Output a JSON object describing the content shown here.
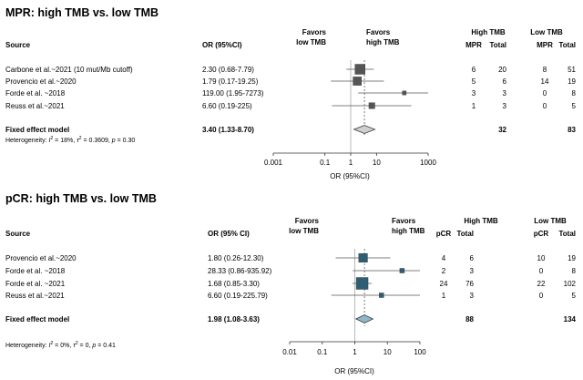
{
  "chart_data": [
    {
      "type": "forest",
      "title": "MPR: high TMB vs. low TMB",
      "headers": {
        "source": "Source",
        "or": "OR (95%CI)",
        "favors_left": [
          "Favors",
          "low TMB"
        ],
        "favors_right": [
          "Favors",
          "high TMB"
        ],
        "group_high": "High TMB",
        "group_low": "Low TMB",
        "event_label": "MPR",
        "total_label": "Total"
      },
      "x_scale": "log",
      "xlim": [
        0.001,
        1000
      ],
      "ticks": [
        {
          "value": 0.001,
          "label": "0.001"
        },
        {
          "value": 0.1,
          "label": "0.1"
        },
        {
          "value": 1,
          "label": "1"
        },
        {
          "value": 10,
          "label": "10"
        },
        {
          "value": 1000,
          "label": "1000"
        }
      ],
      "xlabel": "OR (95%CI)",
      "studies": [
        {
          "source": "Carbone et al.~2021 (10 mut/Mb cutoff)",
          "or_text": "2.30 (0.68-7.79)",
          "or": 2.3,
          "lo": 0.68,
          "hi": 7.79,
          "weight": 1.0,
          "high_events": "6",
          "high_total": "20",
          "low_events": "8",
          "low_total": "51"
        },
        {
          "source": "Provencio et al.~2020",
          "or_text": "1.79 (0.17-19.25)",
          "or": 1.79,
          "lo": 0.17,
          "hi": 19.25,
          "weight": 0.7,
          "high_events": "5",
          "high_total": "6",
          "low_events": "14",
          "low_total": "19"
        },
        {
          "source": "Forde et al. ~2018",
          "or_text": "119.00 (1.95-7273)",
          "or": 119.0,
          "lo": 1.95,
          "hi": 7273,
          "weight": 0.15,
          "high_events": "3",
          "high_total": "3",
          "low_events": "0",
          "low_total": "8"
        },
        {
          "source": "Reuss et al.~2021",
          "or_text": "6.60 (0.19-225)",
          "or": 6.6,
          "lo": 0.19,
          "hi": 225,
          "weight": 0.35,
          "high_events": "1",
          "high_total": "3",
          "low_events": "0",
          "low_total": "5"
        }
      ],
      "summary": {
        "label": "Fixed effect model",
        "or_text": "3.40 (1.33-8.70)",
        "or": 3.4,
        "lo": 1.33,
        "hi": 8.7,
        "high_total": "32",
        "low_total": "83"
      },
      "heterogeneity": {
        "prefix": "Heterogeneity: ",
        "i2": "I",
        "i2_val": " = 18%, ",
        "tau": "τ",
        "tau_val": " = 0.3609, ",
        "p": "p",
        "p_val": " = 0.30"
      },
      "box_color": "#555555",
      "diamond_color": "#cfcfcf"
    },
    {
      "type": "forest",
      "title": "pCR: high TMB vs. low TMB",
      "headers": {
        "source": "Source",
        "or": "OR (95% CI)",
        "favors_left": [
          "Favors",
          "low TMB"
        ],
        "favors_right": [
          "Favors",
          "high TMB"
        ],
        "group_high": "High TMB",
        "group_low": "Low TMB",
        "event_label": "pCR",
        "total_label": "Total"
      },
      "x_scale": "log",
      "xlim": [
        0.01,
        100
      ],
      "ticks": [
        {
          "value": 0.01,
          "label": "0.01"
        },
        {
          "value": 0.1,
          "label": "0.1"
        },
        {
          "value": 1,
          "label": "1"
        },
        {
          "value": 10,
          "label": "10"
        },
        {
          "value": 100,
          "label": "100"
        }
      ],
      "xlabel": "OR (95%CI)",
      "studies": [
        {
          "source": "Provencio et al.~2020",
          "or_text": "1.80 (0.26-12.30)",
          "or": 1.8,
          "lo": 0.26,
          "hi": 12.3,
          "weight": 0.55,
          "high_events": "4",
          "high_total": "6",
          "low_events": "10",
          "low_total": "19"
        },
        {
          "source": "Forde et al. ~2018",
          "or_text": "28.33 (0.86-935.92)",
          "or": 28.33,
          "lo": 0.86,
          "hi": 935.92,
          "weight": 0.15,
          "high_events": "2",
          "high_total": "3",
          "low_events": "0",
          "low_total": "8"
        },
        {
          "source": "Forde et al. ~2021",
          "or_text": "1.68 (0.85-3.30)",
          "or": 1.68,
          "lo": 0.85,
          "hi": 3.3,
          "weight": 1.0,
          "high_events": "24",
          "high_total": "76",
          "low_events": "22",
          "low_total": "102"
        },
        {
          "source": "Reuss et al.~2021",
          "or_text": "6.60 (0.19-225.79)",
          "or": 6.6,
          "lo": 0.19,
          "hi": 225.79,
          "weight": 0.15,
          "high_events": "1",
          "high_total": "3",
          "low_events": "0",
          "low_total": "5"
        }
      ],
      "summary": {
        "label": "Fixed effect model",
        "or_text": "1.98 (1.08-3.63)",
        "or": 1.98,
        "lo": 1.08,
        "hi": 3.63,
        "high_total": "88",
        "low_total": "134"
      },
      "heterogeneity": {
        "prefix": "Heterogeneity: ",
        "i2": "I",
        "i2_val": " = 0%, ",
        "tau": "τ",
        "tau_val": " = 0, ",
        "p": "p",
        "p_val": " = 0.41"
      },
      "box_color": "#2e5e73",
      "diamond_color": "#8fb7c7"
    }
  ]
}
